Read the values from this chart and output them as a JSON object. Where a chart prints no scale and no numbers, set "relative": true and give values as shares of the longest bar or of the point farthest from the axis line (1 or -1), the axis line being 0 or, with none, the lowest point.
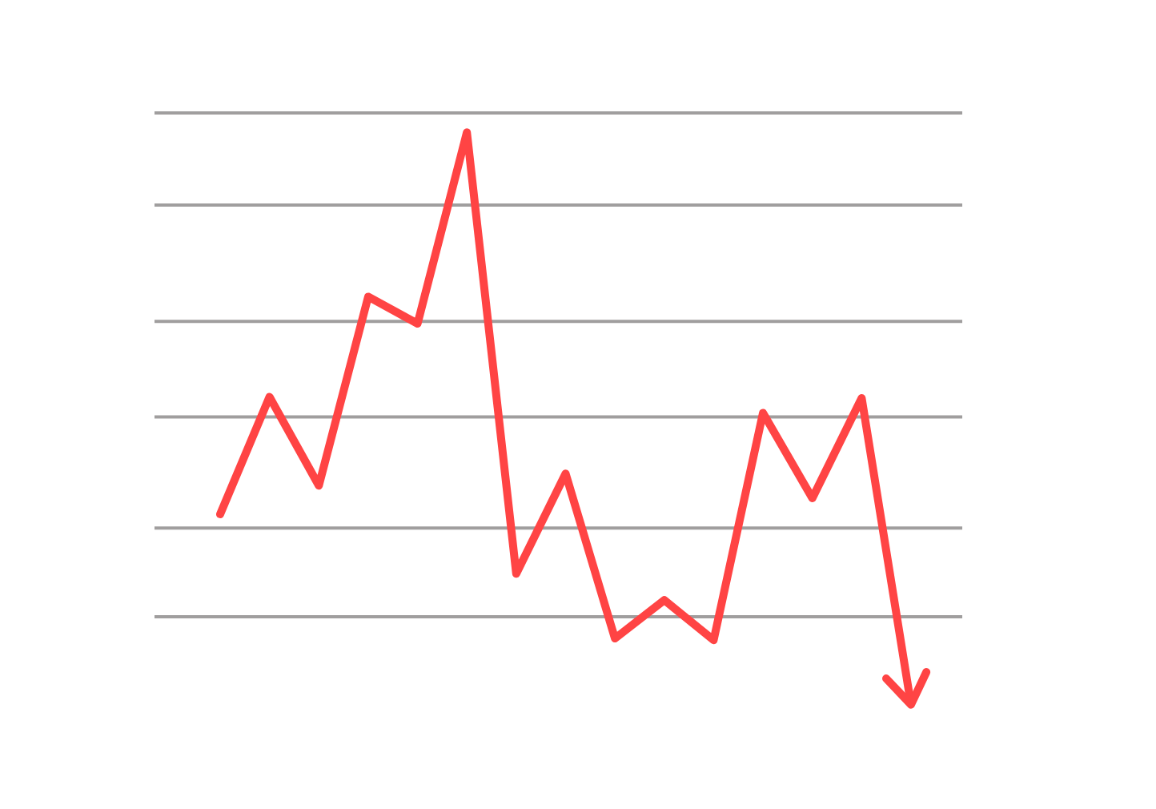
{
  "chart_data": {
    "type": "line",
    "relative": true,
    "categories": [
      null,
      null,
      null,
      null,
      null,
      null,
      null,
      null,
      null,
      null,
      null,
      null,
      null,
      null,
      null
    ],
    "series": [
      {
        "color": "#ff4444",
        "values": [
          0.333,
          0.538,
          0.383,
          0.713,
          0.666,
          1,
          0.229,
          0.404,
          0.116,
          0.183,
          0.113,
          0.51,
          0.361,
          0.536,
          0
        ]
      }
    ],
    "ref_lines": [
      {
        "axis": "y",
        "value": 1.034,
        "color": "#a09e9e"
      },
      {
        "axis": "y",
        "value": 0.873,
        "color": "#a09e9e"
      },
      {
        "axis": "y",
        "value": 0.67,
        "color": "#a09e9e"
      },
      {
        "axis": "y",
        "value": 0.503,
        "color": "#a09e9e"
      },
      {
        "axis": "y",
        "value": 0.309,
        "color": "#a09e9e"
      },
      {
        "axis": "y",
        "value": 0.154,
        "color": "#a09e9e"
      }
    ],
    "marker": "none",
    "line_style": "solid",
    "legend": false
  }
}
